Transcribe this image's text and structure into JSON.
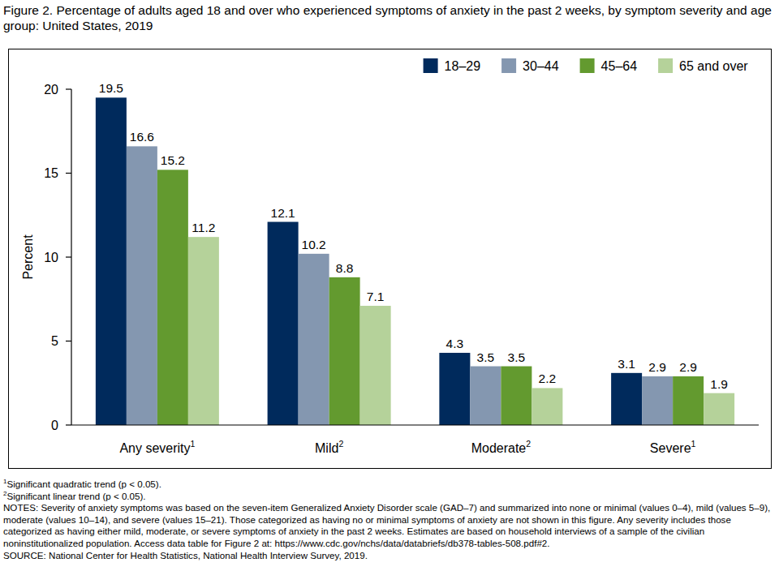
{
  "chart_data": {
    "type": "bar",
    "title": "Figure 2. Percentage of adults aged 18 and over who experienced symptoms of anxiety in the past 2 weeks, by symptom severity and age group: United States, 2019",
    "y_label": "Percent",
    "categories": [
      "Any severity",
      "Mild",
      "Moderate",
      "Severe"
    ],
    "category_superscripts": [
      "1",
      "2",
      "2",
      "1"
    ],
    "series": [
      {
        "name": "18–29",
        "color": "#002a5c",
        "values": [
          19.5,
          12.1,
          4.3,
          3.1
        ]
      },
      {
        "name": "30–44",
        "color": "#8497b0",
        "values": [
          16.6,
          10.2,
          3.5,
          2.9
        ]
      },
      {
        "name": "45–64",
        "color": "#639a2f",
        "values": [
          15.2,
          8.8,
          3.5,
          2.9
        ]
      },
      {
        "name": "65 and over",
        "color": "#b5d29a",
        "values": [
          11.2,
          7.1,
          2.2,
          1.9
        ]
      }
    ],
    "ylim": [
      0,
      20
    ],
    "yticks": [
      0,
      5,
      10,
      15,
      20
    ],
    "grid": false,
    "legend": "top-right",
    "data_labels": true,
    "footnotes": [
      {
        "mark": "1",
        "text": "Significant quadratic trend (p < 0.05)."
      },
      {
        "mark": "2",
        "text": "Significant linear trend (p < 0.05)."
      }
    ],
    "notes": "NOTES: Severity of anxiety symptoms was based on the seven-item Generalized Anxiety Disorder scale (GAD–7) and summarized into none or minimal (values 0–4), mild (values 5–9), moderate (values 10–14), and severe (values 15–21). Those categorized as having no or minimal symptoms of anxiety are not shown in this figure. Any severity includes those categorized as having either mild, moderate, or severe symptoms of anxiety in the past 2 weeks. Estimates are based on household interviews of a sample of the civilian noninstitutionalized population. Access data table for Figure 2 at: https://www.cdc.gov/nchs/data/databriefs/db378-tables-508.pdf#2.",
    "source": "SOURCE: National Center for Health Statistics, National Health Interview Survey, 2019."
  }
}
